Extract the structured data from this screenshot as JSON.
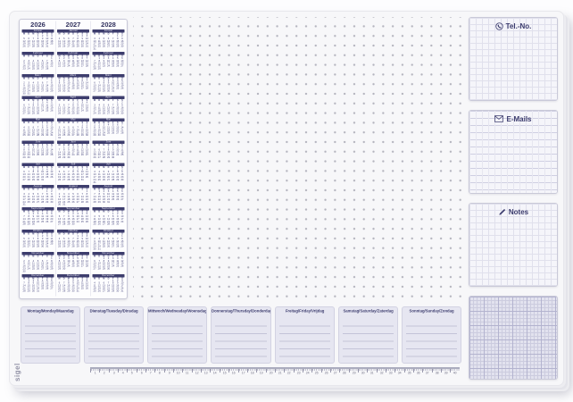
{
  "product": {
    "brand_logo": "sigel"
  },
  "calendar": {
    "years": [
      "2026",
      "2027",
      "2028"
    ],
    "month_names": [
      "Januar",
      "Februar",
      "März",
      "April",
      "Mai",
      "Juni",
      "Juli",
      "August",
      "September",
      "Oktober",
      "November",
      "Dezember"
    ],
    "weekday_initials": [
      "M",
      "D",
      "M",
      "D",
      "F",
      "S",
      "S"
    ]
  },
  "right_panel": {
    "tel": {
      "label": "Tel.-No.",
      "icon": "phone-icon"
    },
    "emails": {
      "label": "E-Mails",
      "icon": "envelope-icon"
    },
    "notes": {
      "label": "Notes",
      "icon": "pencil-icon"
    },
    "grid": {
      "label": "",
      "icon": "graph-grid"
    }
  },
  "week_planner": {
    "days": [
      "Montag/Monday/Maandag",
      "Dienstag/Tuesday/Dinsdag",
      "Mittwoch/Wednesday/Woensdag",
      "Donnerstag/Thursday/Donderdag",
      "Freitag/Friday/Vrijdag",
      "Samstag/Saturday/Zaterdag",
      "Sonntag/Sunday/Zondag"
    ],
    "lines_per_day": 6
  },
  "ruler": {
    "ticks": 40
  },
  "colors": {
    "ink_navy": "#3b3b6d",
    "year_navy": "#32325e",
    "month_bar": "#3d3d6d",
    "day_ink": "#46467e",
    "paper": "#f7f7f9",
    "card_border": "#c9c9d8",
    "lavender_fill": "#e6e6f1",
    "line_lavender": "#c4c4d8",
    "grid_line": "#e0e0ec",
    "grid_line_strong": "#cfcfe2",
    "mm_bg": "#e2e2ee",
    "mm_minor": "#ccccdf",
    "mm_major": "#b3b3cf",
    "dot": "#b4b4be"
  }
}
